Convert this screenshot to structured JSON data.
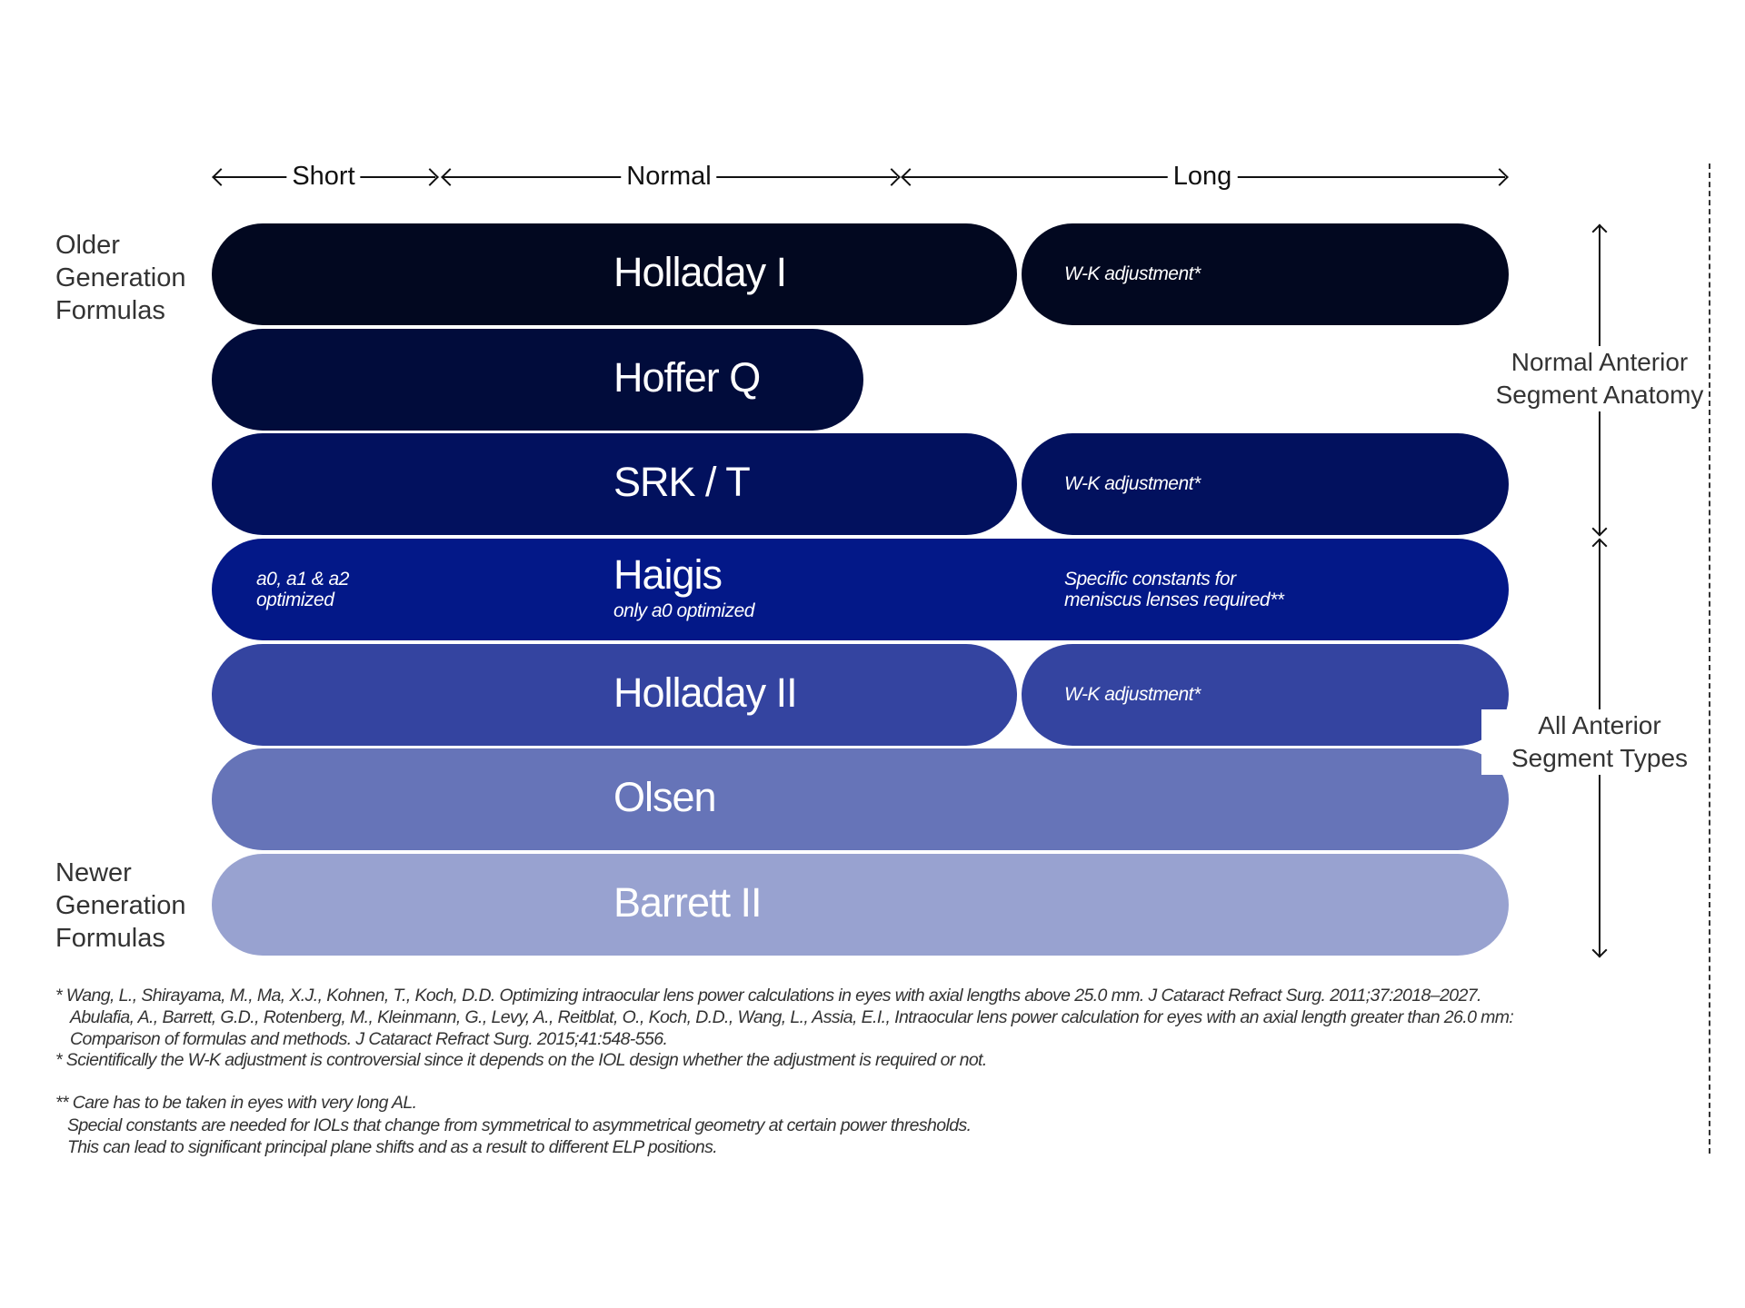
{
  "axial_length_ranges": [
    {
      "label": "Short"
    },
    {
      "label": "Normal"
    },
    {
      "label": "Long"
    }
  ],
  "side_labels": {
    "older": [
      "Older",
      "Generation",
      "Formulas"
    ],
    "newer": [
      "Newer",
      "Generation",
      "Formulas"
    ]
  },
  "formulas": [
    {
      "name": "Holladay I",
      "color": "#020820",
      "long_note": "W-K adjustment*"
    },
    {
      "name": "Hoffer Q",
      "color": "#010c3b"
    },
    {
      "name": "SRK / T",
      "color": "#02115e",
      "long_note": "W-K adjustment*"
    },
    {
      "name": "Haigis",
      "color": "#031888",
      "subtitle": "only a0 optimized",
      "short_note": [
        "a0, a1 & a2",
        "optimized"
      ],
      "long_note_lines": [
        "Specific constants for",
        "meniscus lenses required**"
      ]
    },
    {
      "name": "Holladay II",
      "color": "#3444a0",
      "long_note": "W-K adjustment*"
    },
    {
      "name": "Olsen",
      "color": "#6674b8"
    },
    {
      "name": "Barrett II",
      "color": "#98a2d0"
    }
  ],
  "right_labels": {
    "normal": [
      "Normal Anterior",
      "Segment Anatomy"
    ],
    "all": [
      "All Anterior",
      "Segment Types"
    ]
  },
  "footnotes": [
    "* Wang, L., Shirayama, M., Ma, X.J., Kohnen, T., Koch, D.D. Optimizing intraocular lens power calculations in eyes with axial lengths above 25.0 mm. J Cataract Refract Surg. 2011;37:2018–2027.",
    "Abulafia, A., Barrett, G.D., Rotenberg, M., Kleinmann, G., Levy, A., Reitblat, O., Koch, D.D., Wang, L., Assia, E.I., Intraocular lens power calculation for eyes with an axial length greater than 26.0 mm:",
    "Comparison of formulas and methods. J Cataract Refract Surg. 2015;41:548-556.",
    "* Scientifically the W-K adjustment is controversial since it depends on the IOL design whether the adjustment is required or not.",
    "** Care has to be taken in eyes with very long AL.",
    "Special constants are needed for IOLs that change from symmetrical to asymmetrical geometry at certain power thresholds.",
    "This can lead to significant principal plane shifts and as a result to different ELP positions."
  ]
}
